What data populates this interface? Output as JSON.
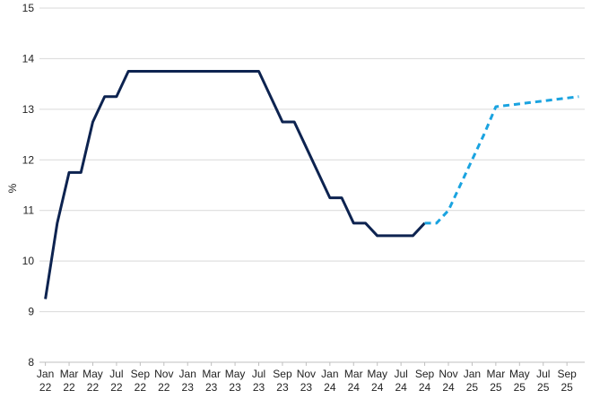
{
  "chart_data": {
    "type": "line",
    "title": "",
    "xlabel": "",
    "ylabel": "%",
    "ylim": [
      8,
      15
    ],
    "yticks": [
      8,
      9,
      10,
      11,
      12,
      13,
      14,
      15
    ],
    "grid": true,
    "legend": "none",
    "xlim": [
      "2022-01",
      "2025-10"
    ],
    "x_tick_labels": [
      {
        "month": "2022-01",
        "line1": "Jan",
        "line2": "22"
      },
      {
        "month": "2022-03",
        "line1": "Mar",
        "line2": "22"
      },
      {
        "month": "2022-05",
        "line1": "May",
        "line2": "22"
      },
      {
        "month": "2022-07",
        "line1": "Jul",
        "line2": "22"
      },
      {
        "month": "2022-09",
        "line1": "Sep",
        "line2": "22"
      },
      {
        "month": "2022-11",
        "line1": "Nov",
        "line2": "22"
      },
      {
        "month": "2023-01",
        "line1": "Jan",
        "line2": "23"
      },
      {
        "month": "2023-03",
        "line1": "Mar",
        "line2": "23"
      },
      {
        "month": "2023-05",
        "line1": "May",
        "line2": "23"
      },
      {
        "month": "2023-07",
        "line1": "Jul",
        "line2": "23"
      },
      {
        "month": "2023-09",
        "line1": "Sep",
        "line2": "23"
      },
      {
        "month": "2023-11",
        "line1": "Nov",
        "line2": "23"
      },
      {
        "month": "2024-01",
        "line1": "Jan",
        "line2": "24"
      },
      {
        "month": "2024-03",
        "line1": "Mar",
        "line2": "24"
      },
      {
        "month": "2024-05",
        "line1": "May",
        "line2": "24"
      },
      {
        "month": "2024-07",
        "line1": "Jul",
        "line2": "24"
      },
      {
        "month": "2024-09",
        "line1": "Sep",
        "line2": "24"
      },
      {
        "month": "2024-11",
        "line1": "Nov",
        "line2": "24"
      },
      {
        "month": "2025-01",
        "line1": "Jan",
        "line2": "25"
      },
      {
        "month": "2025-03",
        "line1": "Mar",
        "line2": "25"
      },
      {
        "month": "2025-05",
        "line1": "May",
        "line2": "25"
      },
      {
        "month": "2025-07",
        "line1": "Jul",
        "line2": "25"
      },
      {
        "month": "2025-09",
        "line1": "Sep",
        "line2": "25"
      }
    ],
    "series": [
      {
        "style": "solid",
        "color": "#0d2350",
        "points": [
          {
            "x": "2022-01",
            "y": 9.25
          },
          {
            "x": "2022-02",
            "y": 10.75
          },
          {
            "x": "2022-03",
            "y": 11.75
          },
          {
            "x": "2022-04",
            "y": 11.75
          },
          {
            "x": "2022-05",
            "y": 12.75
          },
          {
            "x": "2022-06",
            "y": 13.25
          },
          {
            "x": "2022-07",
            "y": 13.25
          },
          {
            "x": "2022-08",
            "y": 13.75
          },
          {
            "x": "2023-07",
            "y": 13.75
          },
          {
            "x": "2023-08",
            "y": 13.25
          },
          {
            "x": "2023-09",
            "y": 12.75
          },
          {
            "x": "2023-10",
            "y": 12.75
          },
          {
            "x": "2023-11",
            "y": 12.25
          },
          {
            "x": "2023-12",
            "y": 11.75
          },
          {
            "x": "2024-01",
            "y": 11.25
          },
          {
            "x": "2024-02",
            "y": 11.25
          },
          {
            "x": "2024-03",
            "y": 10.75
          },
          {
            "x": "2024-04",
            "y": 10.75
          },
          {
            "x": "2024-05",
            "y": 10.5
          },
          {
            "x": "2024-08",
            "y": 10.5
          },
          {
            "x": "2024-09",
            "y": 10.75
          }
        ]
      },
      {
        "style": "dashed",
        "color": "#1aa3e0",
        "points": [
          {
            "x": "2024-09",
            "y": 10.75
          },
          {
            "x": "2024-10",
            "y": 10.75
          },
          {
            "x": "2024-11",
            "y": 11.0
          },
          {
            "x": "2024-12",
            "y": 11.5
          },
          {
            "x": "2025-01",
            "y": 12.0
          },
          {
            "x": "2025-02",
            "y": 12.5
          },
          {
            "x": "2025-03",
            "y": 13.05
          },
          {
            "x": "2025-10",
            "y": 13.25
          }
        ]
      }
    ]
  }
}
